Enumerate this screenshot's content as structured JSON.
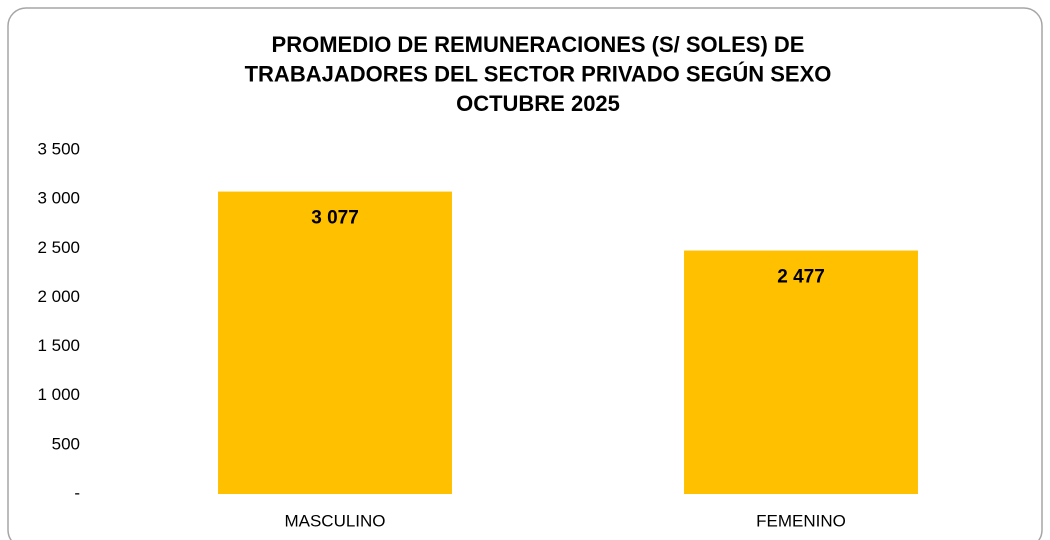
{
  "chart_data": {
    "type": "bar",
    "title": [
      "PROMEDIO DE REMUNERACIONES (S/ SOLES) DE",
      "TRABAJADORES DEL SECTOR PRIVADO SEGÚN SEXO",
      "OCTUBRE 2025"
    ],
    "categories": [
      "MASCULINO",
      "FEMENINO"
    ],
    "values": [
      3077,
      2477
    ],
    "value_labels": [
      "3 077",
      "2 477"
    ],
    "color": "#ffc000",
    "ylim": [
      0,
      3500
    ],
    "yticks": [
      {
        "value": 0,
        "label": "-"
      },
      500,
      {
        "value": 1000,
        "label": "1 000"
      },
      {
        "value": 1500,
        "label": "1 500"
      },
      {
        "value": 2000,
        "label": "2 000"
      },
      {
        "value": 2500,
        "label": "2 500"
      },
      {
        "value": 3000,
        "label": "3 000"
      },
      {
        "value": 3500,
        "label": "3 500"
      }
    ],
    "grid": false
  }
}
